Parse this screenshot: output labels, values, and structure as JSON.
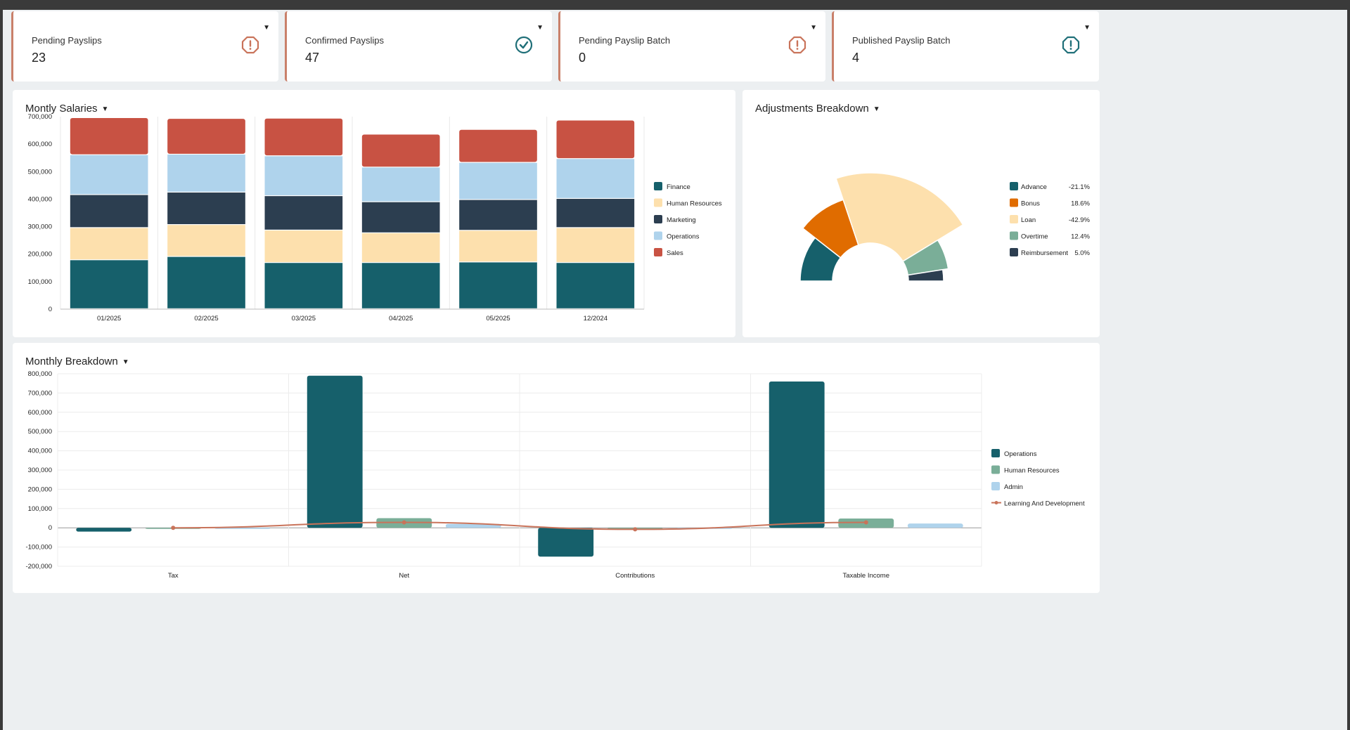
{
  "kpis": [
    {
      "label": "Pending Payslips",
      "value": "23",
      "icon": "alert-octagon-icon",
      "color": "#c9735a"
    },
    {
      "label": "Confirmed Payslips",
      "value": "47",
      "icon": "check-circle-icon",
      "color": "#1f6f78"
    },
    {
      "label": "Pending Payslip Batch",
      "value": "0",
      "icon": "alert-octagon-icon",
      "color": "#c9735a"
    },
    {
      "label": "Published Payslip Batch",
      "value": "4",
      "icon": "alert-octagon-icon",
      "color": "#1f6f78"
    }
  ],
  "panels": {
    "salaries_title": "Montly Salaries",
    "adjustments_title": "Adjustments Breakdown",
    "breakdown_title": "Monthly Breakdown"
  },
  "chart_data": [
    {
      "type": "bar",
      "stacked": true,
      "title": "Montly Salaries",
      "categories": [
        "01/2025",
        "02/2025",
        "03/2025",
        "04/2025",
        "05/2025",
        "12/2024"
      ],
      "ylim": [
        0,
        700000
      ],
      "yticks": [
        "0",
        "100,000",
        "200,000",
        "300,000",
        "400,000",
        "500,000",
        "600,000",
        "700,000"
      ],
      "legend": "right",
      "series": [
        {
          "name": "Finance",
          "color": "#16606b",
          "values": [
            178000,
            190000,
            168000,
            168000,
            170000,
            168000
          ]
        },
        {
          "name": "Human Resources",
          "color": "#fde0ad",
          "values": [
            117000,
            116000,
            118000,
            108000,
            115000,
            127000
          ]
        },
        {
          "name": "Marketing",
          "color": "#2c3e50",
          "values": [
            120000,
            118000,
            125000,
            113000,
            112000,
            106000
          ]
        },
        {
          "name": "Operations",
          "color": "#afd3ec",
          "values": [
            145000,
            138000,
            145000,
            126000,
            135000,
            145000
          ]
        },
        {
          "name": "Sales",
          "color": "#c85243",
          "values": [
            135000,
            130000,
            137000,
            120000,
            120000,
            140000
          ]
        }
      ]
    },
    {
      "type": "pie",
      "variant": "half-donut",
      "title": "Adjustments Breakdown",
      "legend": "right",
      "slices": [
        {
          "name": "Advance",
          "pct_label": "-21.1%",
          "share": 21.1,
          "color": "#16606b"
        },
        {
          "name": "Bonus",
          "pct_label": "18.6%",
          "share": 18.6,
          "color": "#e06c00"
        },
        {
          "name": "Loan",
          "pct_label": "-42.9%",
          "share": 42.9,
          "color": "#fde0ad"
        },
        {
          "name": "Overtime",
          "pct_label": "12.4%",
          "share": 12.4,
          "color": "#7aae98"
        },
        {
          "name": "Reimbursement",
          "pct_label": "5.0%",
          "share": 5.0,
          "color": "#2c3e50"
        }
      ]
    },
    {
      "type": "bar",
      "title": "Monthly Breakdown",
      "categories": [
        "Tax",
        "Net",
        "Contributions",
        "Taxable Income"
      ],
      "ylim": [
        -200000,
        800000
      ],
      "yticks": [
        "-200,000",
        "-100,000",
        "0",
        "100,000",
        "200,000",
        "300,000",
        "400,000",
        "500,000",
        "600,000",
        "700,000",
        "800,000"
      ],
      "legend": "right",
      "series": [
        {
          "name": "Operations",
          "type": "bar",
          "color": "#16606b",
          "values": [
            -20000,
            790000,
            -150000,
            760000
          ]
        },
        {
          "name": "Human Resources",
          "type": "bar",
          "color": "#7aae98",
          "values": [
            -2000,
            50000,
            -10000,
            48000
          ]
        },
        {
          "name": "Admin",
          "type": "bar",
          "color": "#afd3ec",
          "values": [
            -1000,
            20000,
            -5000,
            22000
          ]
        },
        {
          "name": "Learning And Development",
          "type": "line",
          "color": "#c9735a",
          "values": [
            0,
            28000,
            -8000,
            28000
          ]
        }
      ]
    }
  ]
}
